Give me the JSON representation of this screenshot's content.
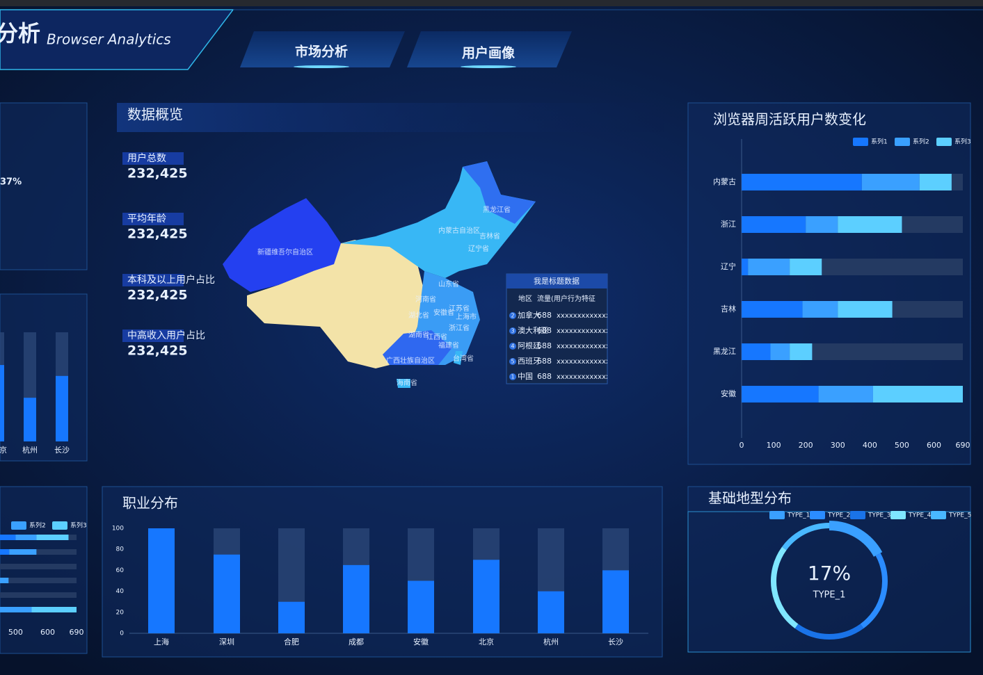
{
  "header": {
    "title": "分析",
    "subtitle": "Browser Analytics",
    "tabs": [
      "市场分析",
      "用户画像"
    ]
  },
  "left_fragment": {
    "value_text": "37%"
  },
  "overview": {
    "title": "数据概览",
    "items": [
      {
        "label": "用户总数",
        "value": "232,425"
      },
      {
        "label": "平均年龄",
        "value": "232,425"
      },
      {
        "label": "本科及以上用户占比",
        "value": "232,425"
      },
      {
        "label": "中高收入用户占比",
        "value": "232,425"
      }
    ]
  },
  "map": {
    "labels": [
      "黑龙江省",
      "内蒙古自治区",
      "吉林省",
      "辽宁省",
      "新疆维吾尔自治区",
      "山东省",
      "河南省",
      "江苏省",
      "安徽省",
      "上海市",
      "湖北省",
      "浙江省",
      "湖南省",
      "江西省",
      "福建省",
      "台湾省",
      "广西壮族自治区",
      "海南省"
    ],
    "table": {
      "title": "我是标题数据",
      "columns": [
        "地区",
        "流量(用户行为特征"
      ],
      "rows": [
        {
          "rank": "2",
          "region": "加拿大",
          "value": "688",
          "feature": "xxxxxxxxxxxxx"
        },
        {
          "rank": "3",
          "region": "澳大利亚",
          "value": "688",
          "feature": "xxxxxxxxxxxxx"
        },
        {
          "rank": "4",
          "region": "阿根廷",
          "value": "688",
          "feature": "xxxxxxxxxxxxx"
        },
        {
          "rank": "5",
          "region": "西班牙",
          "value": "688",
          "feature": "xxxxxxxxxxxxx"
        },
        {
          "rank": "1",
          "region": "中国",
          "value": "688",
          "feature": "xxxxxxxxxxxxx"
        }
      ]
    }
  },
  "chart_data": [
    {
      "type": "bar",
      "categories": [
        "北京",
        "杭州",
        "长沙"
      ],
      "values": [
        70,
        40,
        60
      ],
      "color": "#1677ff",
      "ylim": [
        0,
        100
      ],
      "track": true
    },
    {
      "type": "hbar_stacked",
      "categories": [
        null,
        null,
        null,
        null,
        null,
        null
      ],
      "series": [
        {
          "name": "系列1",
          "color": "#1677ff",
          "values": [
            500,
            480,
            300,
            400,
            250,
            400
          ]
        },
        {
          "name": "系列2",
          "color": "#3aa0ff",
          "values": [
            65,
            85,
            80,
            78,
            100,
            150
          ]
        },
        {
          "name": "系列3",
          "color": "#5ccfff",
          "values": [
            100,
            0,
            40,
            0,
            60,
            140
          ]
        }
      ],
      "xlim": [
        0,
        690
      ],
      "xticks": [
        0,
        100,
        200,
        300,
        400,
        500,
        600,
        690
      ]
    },
    {
      "type": "hbar_stacked",
      "title": "浏览器周活跃用户数变化",
      "categories": [
        "内蒙古",
        "浙江",
        "辽宁",
        "吉林",
        "黑龙江",
        "安徽"
      ],
      "series": [
        {
          "name": "系列1",
          "color": "#1677ff",
          "values": [
            375,
            200,
            20,
            190,
            90,
            240
          ]
        },
        {
          "name": "系列2",
          "color": "#3aa0ff",
          "values": [
            180,
            100,
            130,
            110,
            60,
            170
          ]
        },
        {
          "name": "系列3",
          "color": "#5ccfff",
          "values": [
            100,
            200,
            100,
            170,
            70,
            280
          ]
        }
      ],
      "xlim": [
        0,
        690
      ],
      "xticks": [
        0,
        100,
        200,
        300,
        400,
        500,
        600,
        690
      ]
    },
    {
      "type": "bar",
      "title": "职业分布",
      "categories": [
        "上海",
        "深圳",
        "合肥",
        "成都",
        "安徽",
        "北京",
        "杭州",
        "长沙"
      ],
      "values": [
        100,
        75,
        30,
        65,
        50,
        70,
        40,
        60
      ],
      "color": "#1677ff",
      "ylim": [
        0,
        100
      ],
      "yticks": [
        0,
        20,
        40,
        60,
        80,
        100
      ],
      "track": true
    },
    {
      "type": "pie",
      "title": "基础地型分布",
      "categories": [
        "TYPE_1",
        "TYPE_2",
        "TYPE_3",
        "TYPE_4",
        "TYPE_5"
      ],
      "values": [
        17,
        23,
        20,
        25,
        15
      ],
      "value_labels": [
        "17%",
        null,
        null,
        null,
        null
      ],
      "colors": [
        "#3aa0ff",
        "#2b8cff",
        "#1a73e8",
        "#7fe6ff",
        "#49b8ff"
      ]
    }
  ]
}
